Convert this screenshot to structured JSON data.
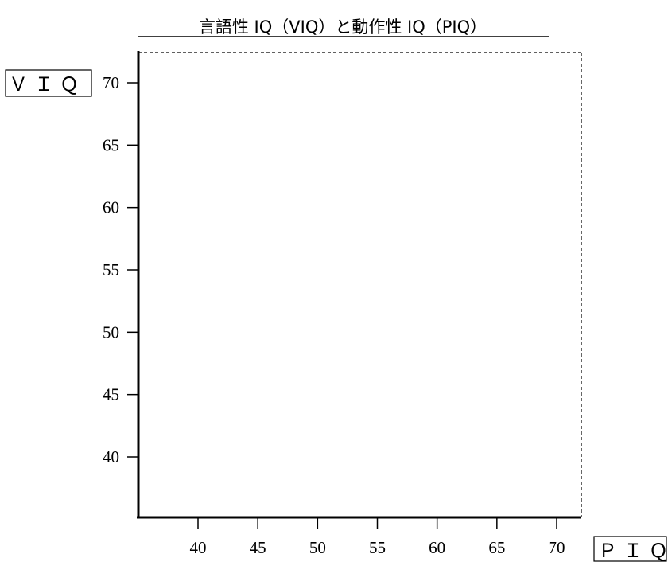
{
  "chart_data": {
    "type": "scatter",
    "title": "言語性 IQ（VIQ）と動作性 IQ（PIQ）",
    "xlabel": "ＰＩＱ",
    "ylabel": "ＶＩＱ",
    "xlim": [
      35,
      72
    ],
    "ylim": [
      35,
      72
    ],
    "x_ticks": [
      40,
      45,
      50,
      55,
      60,
      65,
      70
    ],
    "y_ticks": [
      40,
      45,
      50,
      55,
      60,
      65,
      70
    ],
    "x_tick_labels": [
      "40",
      "45",
      "50",
      "55",
      "60",
      "65",
      "70"
    ],
    "y_tick_labels": [
      "40",
      "45",
      "50",
      "55",
      "60",
      "65",
      "70"
    ],
    "series": [
      {
        "x": [],
        "y": []
      }
    ],
    "grid": false,
    "frame_color": "#000000"
  }
}
